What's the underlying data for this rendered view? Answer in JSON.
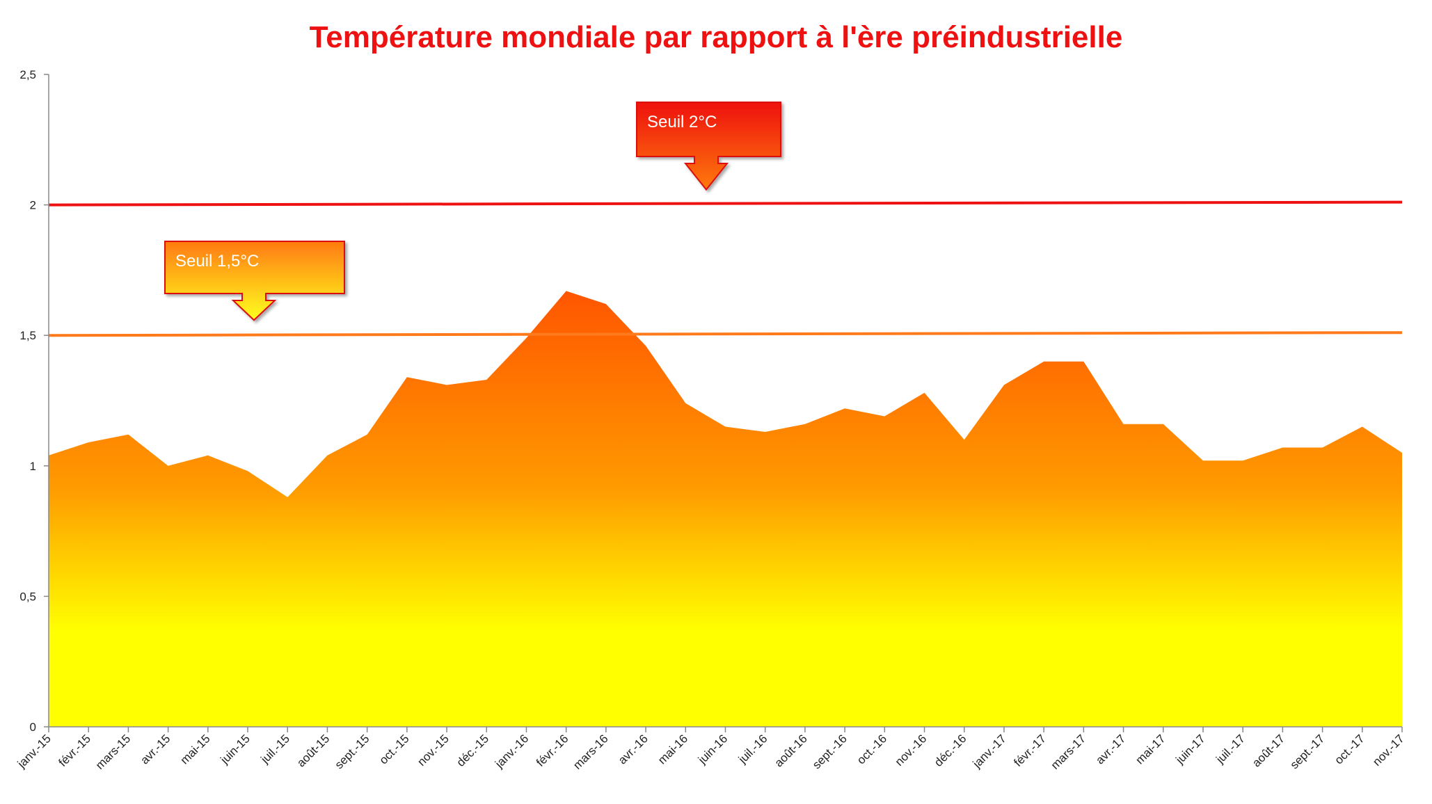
{
  "chart_data": {
    "type": "area",
    "title": "Température mondiale par rapport à l'ère préindustrielle",
    "xlabel": "",
    "ylabel": "",
    "ylim": [
      0,
      2.5
    ],
    "yticks": [
      "0",
      "0,5",
      "1",
      "1,5",
      "2",
      "2,5"
    ],
    "ytick_values": [
      0,
      0.5,
      1,
      1.5,
      2,
      2.5
    ],
    "grid": false,
    "categories": [
      "janv.-15",
      "févr.-15",
      "mars-15",
      "avr.-15",
      "mai-15",
      "juin-15",
      "juil.-15",
      "août-15",
      "sept.-15",
      "oct.-15",
      "nov.-15",
      "déc.-15",
      "janv.-16",
      "févr.-16",
      "mars-16",
      "avr.-16",
      "mai-16",
      "juin-16",
      "juil.-16",
      "août-16",
      "sept.-16",
      "oct.-16",
      "nov.-16",
      "déc.-16",
      "janv.-17",
      "févr.-17",
      "mars-17",
      "avr.-17",
      "mai-17",
      "juin-17",
      "juil.-17",
      "août-17",
      "sept.-17",
      "oct.-17",
      "nov.-17"
    ],
    "series": [
      {
        "values": [
          1.04,
          1.09,
          1.12,
          1.0,
          1.04,
          0.98,
          0.88,
          1.04,
          1.12,
          1.34,
          1.31,
          1.33,
          1.49,
          1.67,
          1.62,
          1.46,
          1.24,
          1.15,
          1.13,
          1.16,
          1.22,
          1.19,
          1.28,
          1.1,
          1.31,
          1.4,
          1.4,
          1.16,
          1.16,
          1.02,
          1.02,
          1.07,
          1.07,
          1.15,
          1.05
        ],
        "fill_top": "#ff5500",
        "fill_bottom": "#ffff00"
      }
    ],
    "thresholds": [
      {
        "label": "Seuil 2°C",
        "value": 2.0,
        "color": "#ee1111"
      },
      {
        "label": "Seuil 1,5°C",
        "value": 1.5,
        "color": "#ff7a1a"
      }
    ]
  }
}
